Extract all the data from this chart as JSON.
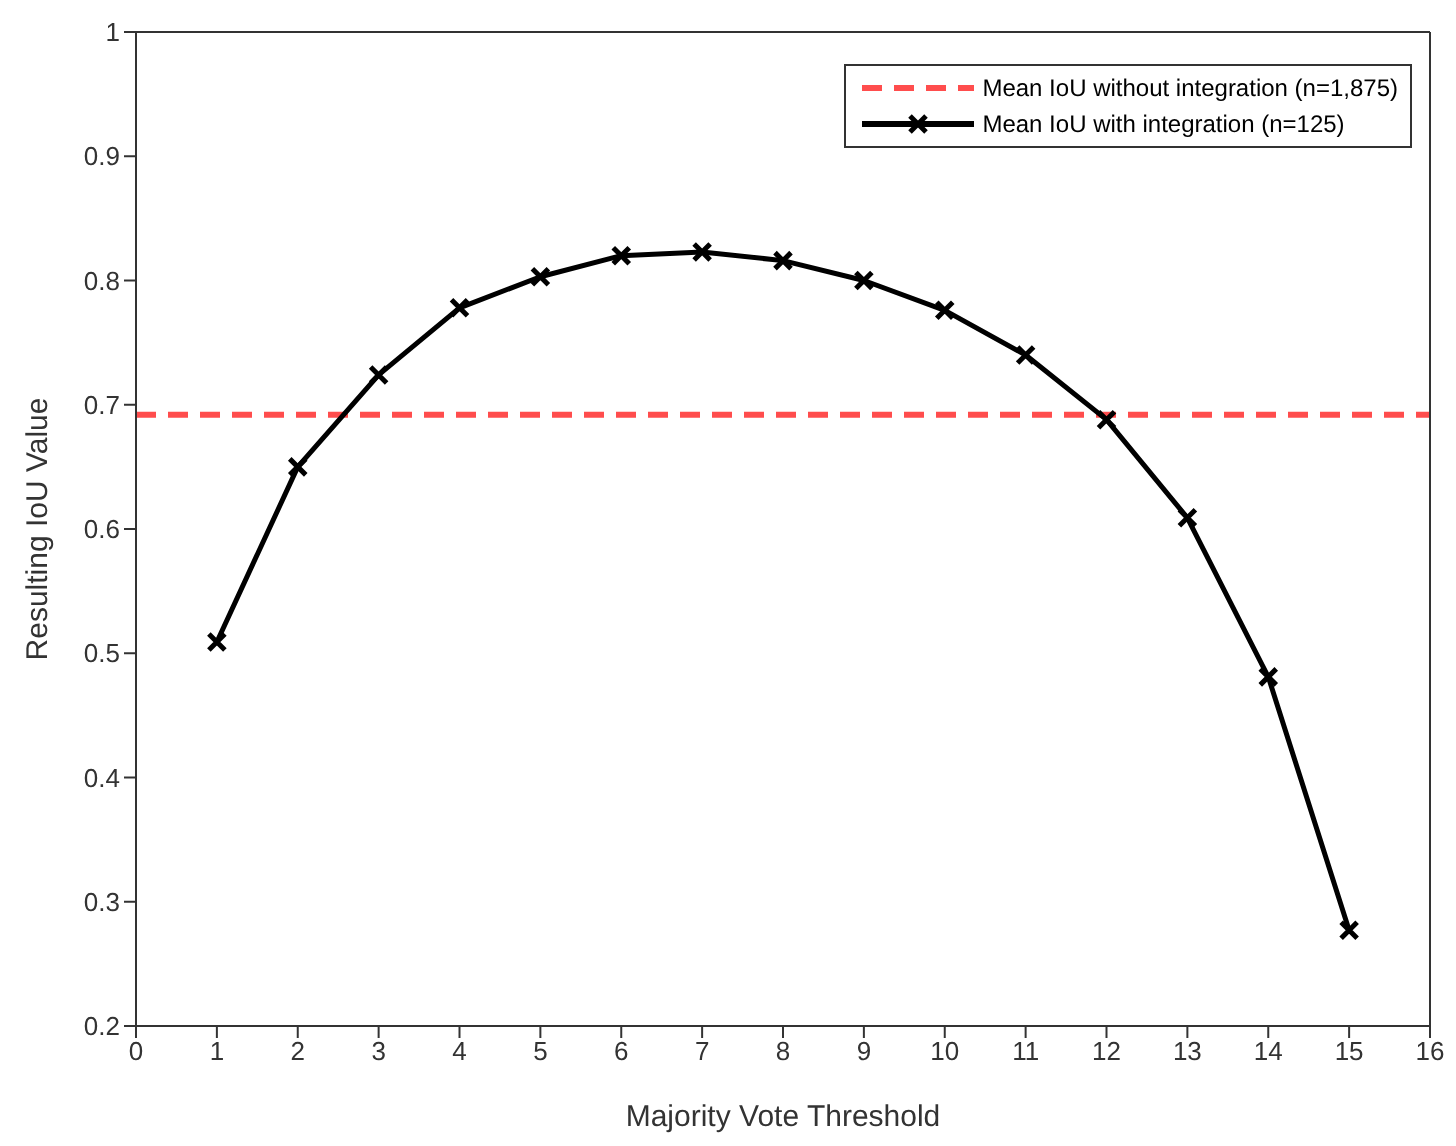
{
  "chart_data": {
    "type": "line",
    "xlabel": "Majority Vote Threshold",
    "ylabel": "Resulting IoU Value",
    "x": [
      1,
      2,
      3,
      4,
      5,
      6,
      7,
      8,
      9,
      10,
      11,
      12,
      13,
      14,
      15
    ],
    "series": [
      {
        "name": "Mean IoU without integration (n=1,875)",
        "color": "#ff4d4d",
        "x": [
          0,
          16
        ],
        "values": [
          0.692,
          0.692
        ],
        "line_style": "dashed",
        "marker": "none"
      },
      {
        "name": "Mean IoU with integration (n=125)",
        "color": "#000000",
        "values": [
          0.509,
          0.65,
          0.724,
          0.778,
          0.803,
          0.82,
          0.823,
          0.816,
          0.8,
          0.776,
          0.74,
          0.688,
          0.609,
          0.481,
          0.277
        ]
      }
    ],
    "xlim": [
      0,
      16
    ],
    "xticks": [
      0,
      1,
      2,
      3,
      4,
      5,
      6,
      7,
      8,
      9,
      10,
      11,
      12,
      13,
      14,
      15,
      16
    ],
    "ylim": [
      0.2,
      1
    ],
    "yticks": [
      0.2,
      0.3,
      0.4,
      0.5,
      0.6,
      0.7,
      0.8,
      0.9,
      1
    ],
    "legend": "top right",
    "marker": "cross",
    "line_style": "solid",
    "grid": false
  }
}
